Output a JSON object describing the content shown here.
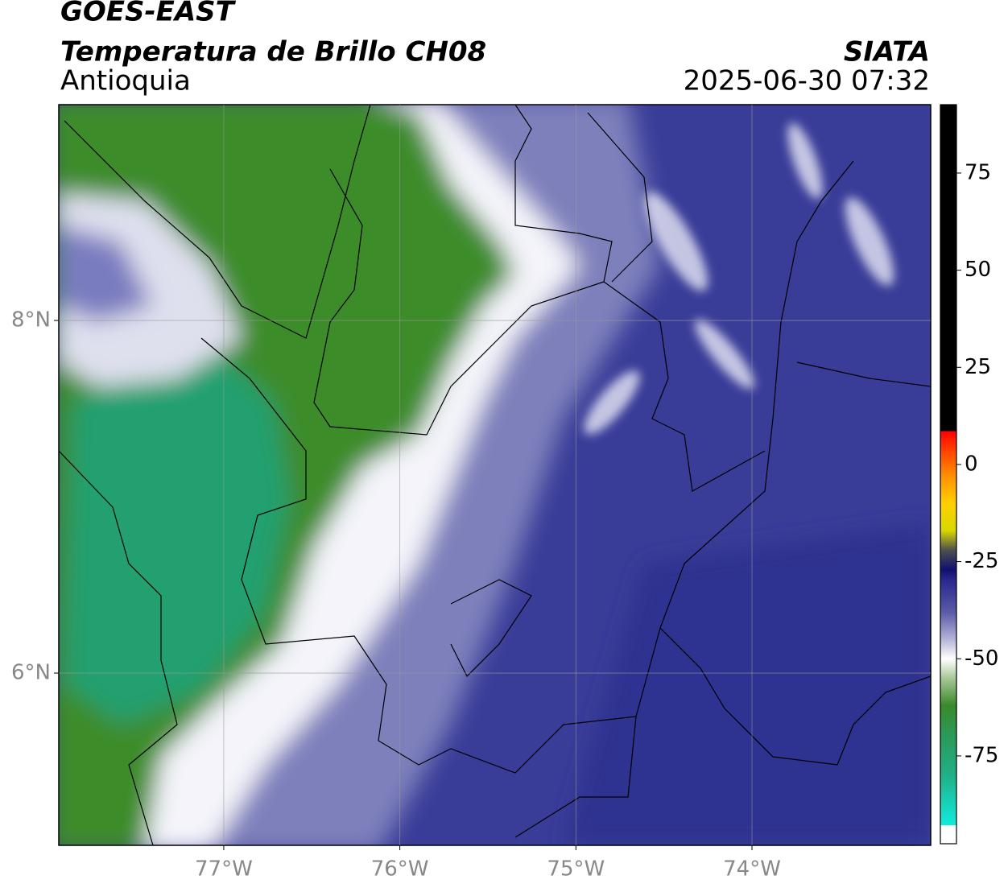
{
  "header": {
    "title": "GOES-EAST",
    "subtitle": "Temperatura de Brillo CH08",
    "region": "Antioquia",
    "source": "SIATA",
    "timestamp": "2025-06-30 07:32"
  },
  "map": {
    "xlim": [
      -77.937,
      -72.985
    ],
    "ylim": [
      5.023,
      9.224
    ],
    "xticks": [
      {
        "value": -77,
        "label": "77°W"
      },
      {
        "value": -76,
        "label": "76°W"
      },
      {
        "value": -75,
        "label": "75°W"
      },
      {
        "value": -74,
        "label": "74°W"
      }
    ],
    "yticks": [
      {
        "value": 8,
        "label": "8°N"
      },
      {
        "value": 6,
        "label": "6°N"
      }
    ],
    "grid": true
  },
  "colorbar": {
    "lim": [
      -97.6,
      92.6
    ],
    "ticks": [
      75,
      50,
      25,
      0,
      -25,
      -50,
      -75
    ],
    "stops": [
      {
        "value": -97.6,
        "color": "#ffffff"
      },
      {
        "value": -92.8,
        "color": "#ffffff"
      },
      {
        "value": -92.8,
        "color": "#10ecdc"
      },
      {
        "value": -80,
        "color": "#20b088"
      },
      {
        "value": -70,
        "color": "#2a9a5a"
      },
      {
        "value": -62,
        "color": "#3a8a2a"
      },
      {
        "value": -55,
        "color": "#a8c898"
      },
      {
        "value": -50,
        "color": "#ffffff"
      },
      {
        "value": -45,
        "color": "#b4b4d8"
      },
      {
        "value": -38,
        "color": "#5a5aa8"
      },
      {
        "value": -30,
        "color": "#2a2a90"
      },
      {
        "value": -27,
        "color": "#101070"
      },
      {
        "value": -22,
        "color": "#505050"
      },
      {
        "value": -17,
        "color": "#d8d800"
      },
      {
        "value": -10,
        "color": "#ffd000"
      },
      {
        "value": -3,
        "color": "#ff9000"
      },
      {
        "value": 5,
        "color": "#ff3000"
      },
      {
        "value": 8.6,
        "color": "#ff0000"
      },
      {
        "value": 8.6,
        "color": "#000000"
      },
      {
        "value": 92.6,
        "color": "#000000"
      }
    ]
  }
}
